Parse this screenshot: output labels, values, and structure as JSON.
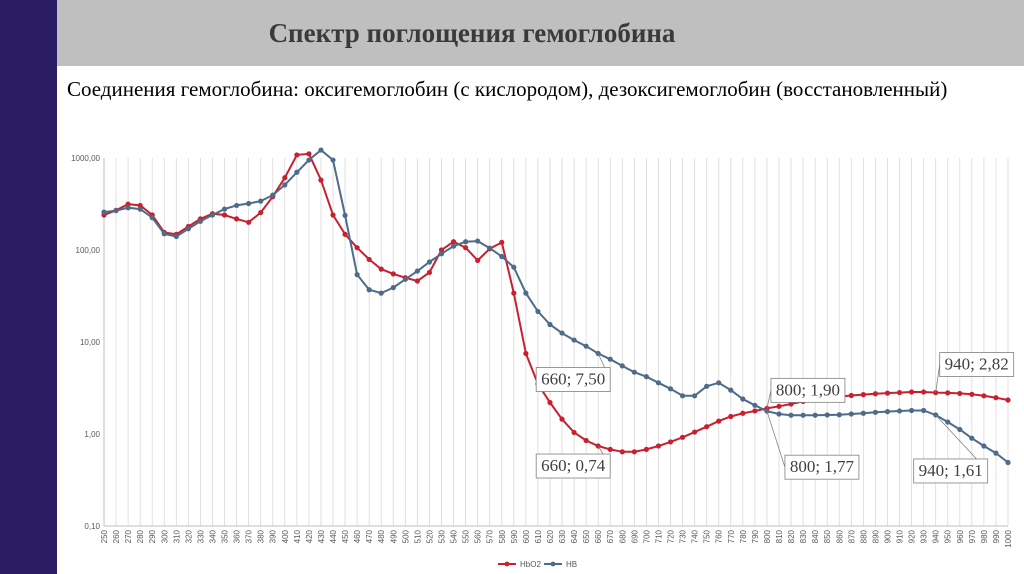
{
  "slide": {
    "title": "Спектр поглощения гемоглобина",
    "subtitle": "Соединения гемоглобина: оксигемоглобин (с кислородом),  дезоксигемоглобин (восстановленный)"
  },
  "colors": {
    "left_bar": "#2b1d63",
    "header_band": "#bfbfbf",
    "hbo2": "#c8202f",
    "hb": "#4e6b8a",
    "grid": "#d9d9d9"
  },
  "chart_data": {
    "type": "line",
    "title": "",
    "xlabel": "",
    "ylabel": "",
    "y_scale": "log",
    "ylim": [
      0.1,
      1000
    ],
    "y_ticks": [
      "0,10",
      "1,00",
      "10,00",
      "100,00",
      "1000,00"
    ],
    "y_tick_values": [
      0.1,
      1,
      10,
      100,
      1000
    ],
    "grid": "vertical",
    "legend_position": "bottom-center",
    "x": [
      250,
      260,
      270,
      280,
      290,
      300,
      310,
      320,
      330,
      340,
      350,
      360,
      370,
      380,
      390,
      400,
      410,
      420,
      430,
      440,
      450,
      460,
      470,
      480,
      490,
      500,
      510,
      520,
      530,
      540,
      550,
      560,
      570,
      580,
      590,
      600,
      610,
      620,
      630,
      640,
      650,
      660,
      670,
      680,
      690,
      700,
      710,
      720,
      730,
      740,
      750,
      760,
      770,
      780,
      790,
      800,
      810,
      820,
      830,
      840,
      850,
      860,
      870,
      880,
      890,
      900,
      910,
      920,
      930,
      940,
      950,
      960,
      970,
      980,
      990,
      1000
    ],
    "series": [
      {
        "name": "HbO2",
        "color": "#c8202f",
        "values": [
          240,
          270,
          315,
          305,
          240,
          155,
          148,
          180,
          218,
          248,
          240,
          218,
          200,
          255,
          380,
          610,
          1080,
          1110,
          575,
          240,
          148,
          106,
          79,
          62,
          55,
          50,
          46,
          57,
          100,
          123,
          106,
          77,
          103,
          121,
          34,
          7.5,
          3.5,
          2.2,
          1.45,
          1.04,
          0.85,
          0.74,
          0.68,
          0.64,
          0.64,
          0.68,
          0.74,
          0.82,
          0.92,
          1.05,
          1.2,
          1.38,
          1.55,
          1.68,
          1.78,
          1.9,
          2.0,
          2.12,
          2.26,
          2.38,
          2.48,
          2.55,
          2.62,
          2.68,
          2.74,
          2.78,
          2.82,
          2.86,
          2.86,
          2.82,
          2.8,
          2.76,
          2.7,
          2.6,
          2.48,
          2.34
        ]
      },
      {
        "name": "HB",
        "color": "#4e6b8a",
        "values": [
          258,
          268,
          288,
          278,
          225,
          150,
          140,
          170,
          205,
          240,
          278,
          305,
          320,
          340,
          395,
          510,
          700,
          950,
          1220,
          950,
          238,
          54,
          37,
          34,
          39,
          48,
          59,
          74,
          91,
          110,
          123,
          125,
          105,
          85,
          65,
          34,
          21.5,
          15.5,
          12.5,
          10.5,
          9.0,
          7.5,
          6.5,
          5.5,
          4.7,
          4.2,
          3.6,
          3.1,
          2.6,
          2.6,
          3.3,
          3.6,
          3.0,
          2.4,
          2.05,
          1.77,
          1.65,
          1.6,
          1.6,
          1.6,
          1.61,
          1.62,
          1.65,
          1.68,
          1.72,
          1.75,
          1.78,
          1.8,
          1.8,
          1.61,
          1.35,
          1.12,
          0.9,
          0.74,
          0.62,
          0.49
        ]
      }
    ],
    "annotations": [
      {
        "label": "660; 7,50",
        "x": 660,
        "y": 7.5
      },
      {
        "label": "660; 0,74",
        "x": 660,
        "y": 0.74
      },
      {
        "label": "800; 1,90",
        "x": 800,
        "y": 1.9
      },
      {
        "label": "800; 1,77",
        "x": 800,
        "y": 1.77
      },
      {
        "label": "940; 2,82",
        "x": 940,
        "y": 2.82
      },
      {
        "label": "940; 1,61",
        "x": 940,
        "y": 1.61
      }
    ]
  }
}
